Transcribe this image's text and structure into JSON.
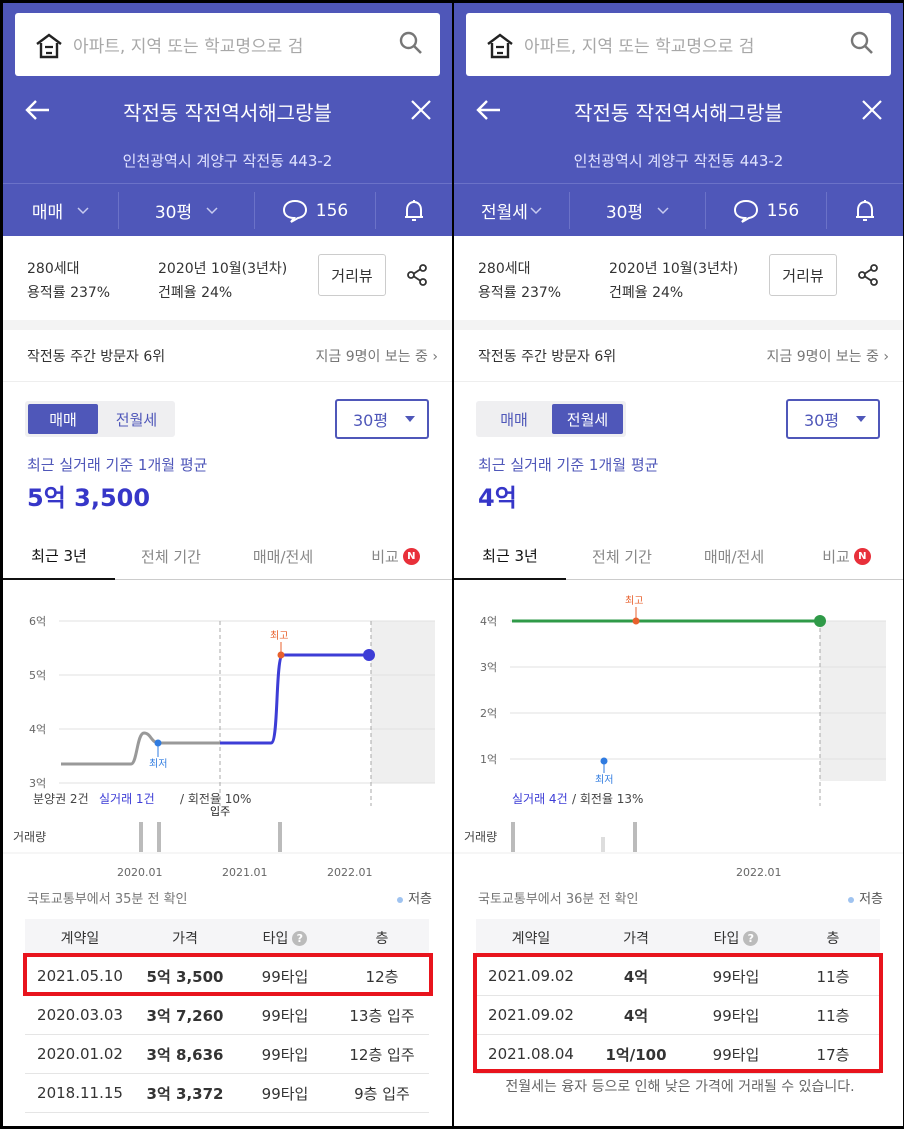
{
  "panels": [
    {
      "search_placeholder": "아파트, 지역 또는 학교명으로 검",
      "title": "작전동 작전역서해그랑블",
      "address": "인천광역시 계양구 작전동 443-2",
      "filters": {
        "deal_type": "매매",
        "size": "30평",
        "comments": "156"
      },
      "info": {
        "households": "280세대",
        "built": "2020년 10월(3년차)",
        "far": "용적률 237%",
        "bcr": "건폐율 24%",
        "dist_button": "거리뷰"
      },
      "visitor": {
        "rank": "작전동 주간 방문자 6위",
        "now": "지금 9명이 보는 중"
      },
      "segment": {
        "sale": "매매",
        "rent": "전월세",
        "active": "sale"
      },
      "size_select": "30평",
      "avg_label": "최근 실거래 기준 1개월 평균",
      "avg_price": "5억 3,500",
      "tabs": [
        "최근 3년",
        "전체 기간",
        "매매/전세",
        "비교"
      ],
      "badge": "N",
      "chart": {
        "y_ticks": [
          "6억",
          "5억",
          "4억",
          "3억"
        ],
        "high_label": "최고",
        "low_label": "최저",
        "summary_a": "분양권 2건",
        "summary_b": "실거래 1건",
        "summary_c": " / 회전율 10%",
        "move_in": "입주",
        "volume_label": "거래량",
        "x_ticks": [
          "2020.01",
          "2021.01",
          "2022.01"
        ]
      },
      "confirm": "국토교통부에서 35분 전 확인",
      "legend_low": "저층",
      "table": {
        "headers": [
          "계약일",
          "가격",
          "타입",
          "층"
        ],
        "rows": [
          [
            "2021.05.10",
            "5억 3,500",
            "99타입",
            "12층"
          ],
          [
            "2020.03.03",
            "3억 7,260",
            "99타입",
            "13층 입주"
          ],
          [
            "2020.01.02",
            "3억 8,636",
            "99타입",
            "12층 입주"
          ],
          [
            "2018.11.15",
            "3억 3,372",
            "99타입",
            "9층 입주"
          ]
        ]
      }
    },
    {
      "search_placeholder": "아파트, 지역 또는 학교명으로 검",
      "title": "작전동 작전역서해그랑블",
      "address": "인천광역시 계양구 작전동 443-2",
      "filters": {
        "deal_type": "전월세",
        "size": "30평",
        "comments": "156"
      },
      "info": {
        "households": "280세대",
        "built": "2020년 10월(3년차)",
        "far": "용적률 237%",
        "bcr": "건폐율 24%",
        "dist_button": "거리뷰"
      },
      "visitor": {
        "rank": "작전동 주간 방문자 6위",
        "now": "지금 9명이 보는 중"
      },
      "segment": {
        "sale": "매매",
        "rent": "전월세",
        "active": "rent"
      },
      "size_select": "30평",
      "avg_label": "최근 실거래 기준 1개월 평균",
      "avg_price": "4억",
      "tabs": [
        "최근 3년",
        "전체 기간",
        "매매/전세",
        "비교"
      ],
      "badge": "N",
      "chart": {
        "y_ticks": [
          "4억",
          "3억",
          "2억",
          "1억"
        ],
        "high_label": "최고",
        "low_label": "최저",
        "summary_a": "실거래 4건",
        "summary_c": " / 회전율 13%",
        "volume_label": "거래량",
        "x_ticks": [
          "2022.01"
        ]
      },
      "confirm": "국토교통부에서 36분 전 확인",
      "legend_low": "저층",
      "table": {
        "headers": [
          "계약일",
          "가격",
          "타입",
          "층"
        ],
        "rows": [
          [
            "2021.09.02",
            "4억",
            "99타입",
            "11층"
          ],
          [
            "2021.09.02",
            "4억",
            "99타입",
            "11층"
          ],
          [
            "2021.08.04",
            "1억/100",
            "99타입",
            "17층"
          ]
        ]
      },
      "note": "전월세는 융자 등으로 인해 낮은 가격에 거래될 수 있습니다."
    }
  ],
  "colors": {
    "brand": "#4f57b9",
    "sale_line": "#3d3dd6",
    "rent_line": "#2f9a48",
    "highlight": "#e8141d",
    "high_point": "#e8602c"
  }
}
